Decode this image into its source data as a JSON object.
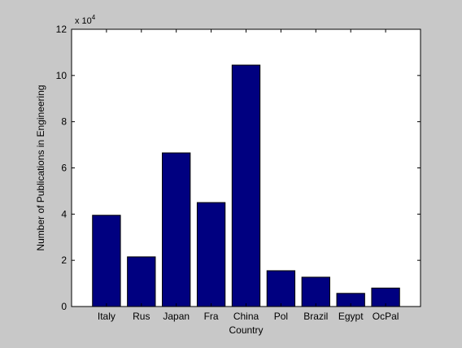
{
  "chart_data": {
    "type": "bar",
    "categories": [
      "Italy",
      "Rus",
      "Japan",
      "Fra",
      "China",
      "Pol",
      "Brazil",
      "Egypt",
      "OcPal"
    ],
    "values": [
      39500,
      21500,
      66500,
      45000,
      104500,
      15500,
      12700,
      5700,
      8000
    ],
    "xlabel": "Country",
    "ylabel": "Number of Publications in Engineering",
    "ylim": [
      0,
      120000
    ],
    "yticks": [
      0,
      20000,
      40000,
      60000,
      80000,
      100000,
      120000
    ],
    "ytick_labels": [
      "0",
      "2",
      "4",
      "6",
      "8",
      "10",
      "12"
    ],
    "exponent_label_base": "x 10",
    "exponent_label_power": "4",
    "bar_color": "#000080",
    "grid": false,
    "legend": "none"
  }
}
